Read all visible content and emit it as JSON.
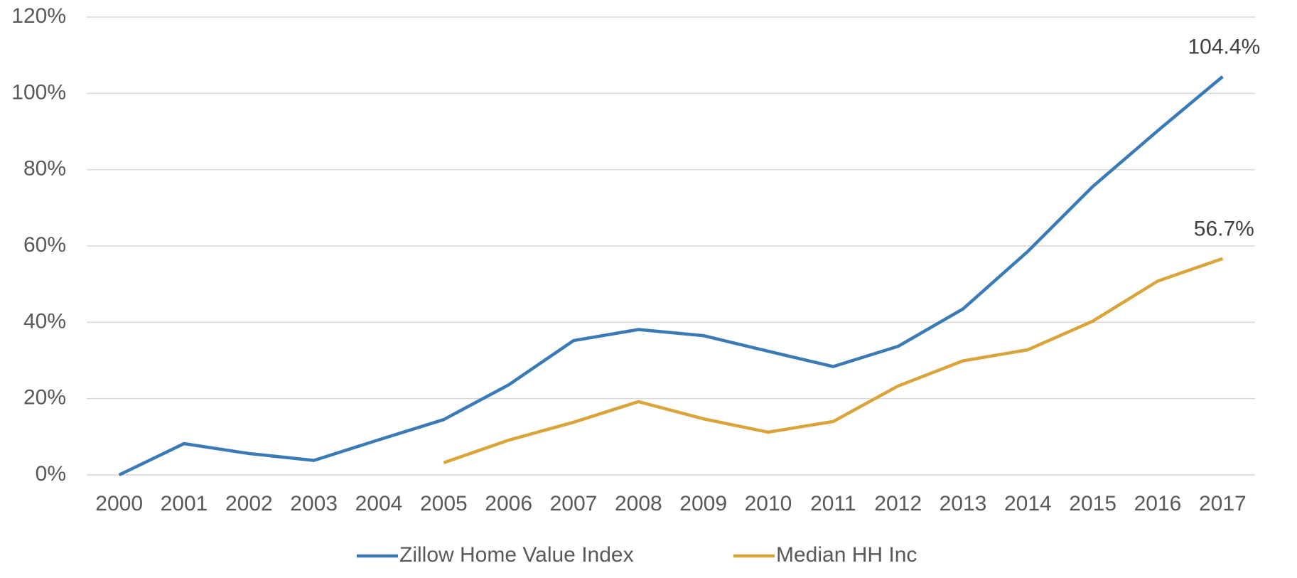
{
  "chart_data": {
    "type": "line",
    "categories": [
      "2000",
      "2001",
      "2002",
      "2003",
      "2004",
      "2005",
      "2006",
      "2007",
      "2008",
      "2009",
      "2010",
      "2011",
      "2012",
      "2013",
      "2014",
      "2015",
      "2016",
      "2017"
    ],
    "series": [
      {
        "name": "Zillow Home Value Index",
        "color": "#3a7ab5",
        "values": [
          0,
          8.2,
          5.6,
          3.8,
          9.2,
          14.5,
          23.6,
          35.2,
          38.1,
          36.5,
          32.4,
          28.4,
          33.7,
          43.5,
          58.6,
          75.6,
          90.2,
          104.4
        ],
        "value_labels": [
          null,
          null,
          null,
          null,
          null,
          null,
          null,
          null,
          null,
          null,
          null,
          null,
          null,
          null,
          null,
          null,
          null,
          "104.4%"
        ]
      },
      {
        "name": "Median HH Inc",
        "color": "#d9a43a",
        "values": [
          null,
          null,
          null,
          null,
          null,
          3.2,
          9.1,
          13.8,
          19.2,
          14.7,
          11.2,
          14.0,
          23.3,
          29.9,
          32.8,
          40.3,
          50.8,
          56.7
        ],
        "value_labels": [
          null,
          null,
          null,
          null,
          null,
          null,
          null,
          null,
          null,
          null,
          null,
          null,
          null,
          null,
          null,
          null,
          null,
          "56.7%"
        ]
      }
    ],
    "ylim": [
      0,
      120
    ],
    "yticks": [
      {
        "value": 0,
        "label": "0%"
      },
      {
        "value": 20,
        "label": "20%"
      },
      {
        "value": 40,
        "label": "40%"
      },
      {
        "value": 60,
        "label": "60%"
      },
      {
        "value": 80,
        "label": "80%"
      },
      {
        "value": 100,
        "label": "100%"
      },
      {
        "value": 120,
        "label": "120%"
      }
    ],
    "grid": true,
    "legend": "bottom"
  }
}
